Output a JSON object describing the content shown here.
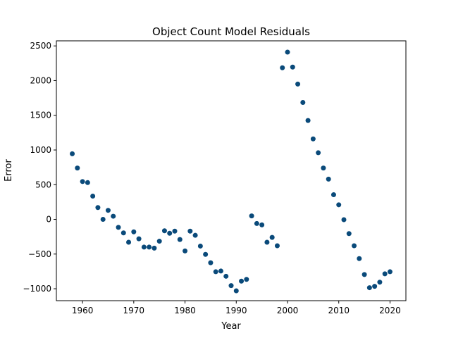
{
  "chart_data": {
    "type": "scatter",
    "title": "Object Count Model Residuals",
    "xlabel": "Year",
    "ylabel": "Error",
    "xlim": [
      1954.9,
      2023.1
    ],
    "ylim": [
      -1172,
      2573
    ],
    "xticks": [
      1960,
      1970,
      1980,
      1990,
      2000,
      2010,
      2020
    ],
    "yticks": [
      -1000,
      -500,
      0,
      500,
      1000,
      1500,
      2000,
      2500
    ],
    "grid": false,
    "legend": "none",
    "marker_color": "#0a4a7a",
    "series": [
      {
        "x": [
          1958,
          1959,
          1960,
          1961,
          1962,
          1963,
          1964,
          1965,
          1966,
          1967,
          1968,
          1969,
          1970,
          1971,
          1972,
          1973,
          1974,
          1975,
          1976,
          1977,
          1978,
          1979,
          1980,
          1981,
          1982,
          1983,
          1984,
          1985,
          1986,
          1987,
          1988,
          1989,
          1990,
          1991,
          1992,
          1993,
          1994,
          1995,
          1996,
          1997,
          1998,
          1999,
          2000,
          2001,
          2002,
          2003,
          2004,
          2005,
          2006,
          2007,
          2008,
          2009,
          2010,
          2011,
          2012,
          2013,
          2014,
          2015,
          2016,
          2017,
          2018,
          2019,
          2020
        ],
        "y": [
          945,
          740,
          545,
          530,
          335,
          170,
          0,
          130,
          45,
          -115,
          -195,
          -330,
          -180,
          -280,
          -400,
          -400,
          -415,
          -315,
          -165,
          -200,
          -170,
          -290,
          -455,
          -170,
          -230,
          -385,
          -505,
          -625,
          -755,
          -745,
          -820,
          -955,
          -1030,
          -890,
          -865,
          50,
          -60,
          -80,
          -330,
          -260,
          -380,
          2185,
          2410,
          2195,
          1950,
          1685,
          1425,
          1160,
          960,
          740,
          580,
          355,
          210,
          -5,
          -205,
          -380,
          -565,
          -795,
          -985,
          -965,
          -905,
          -785,
          -755
        ]
      }
    ]
  }
}
